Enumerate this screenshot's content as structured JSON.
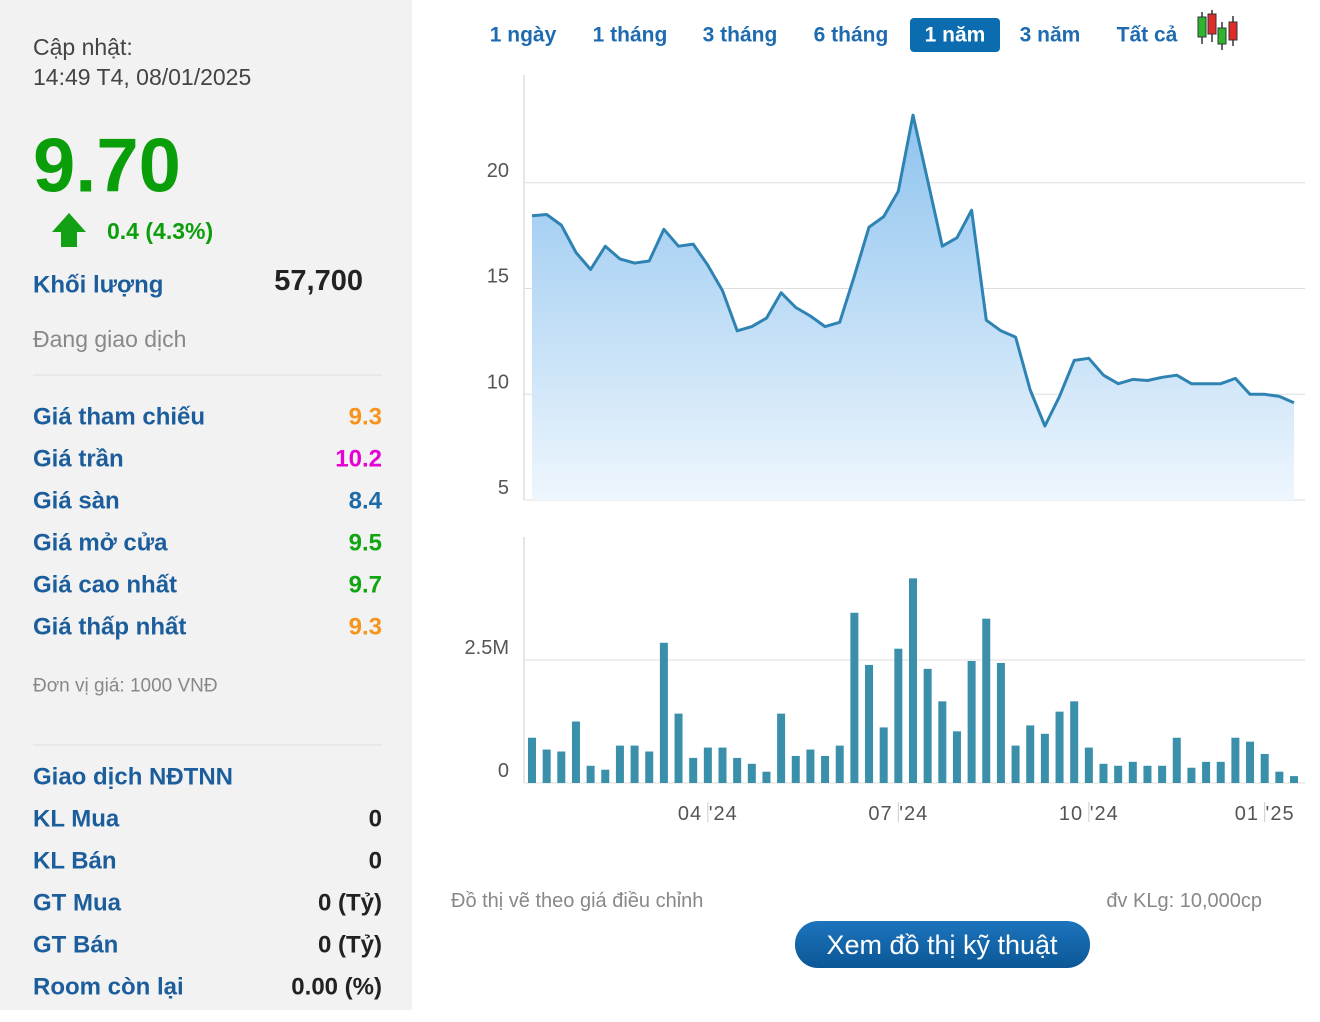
{
  "update": {
    "label": "Cập nhật:",
    "time": "14:49 T4, 08/01/2025"
  },
  "price": "9.70",
  "change": "0.4 (4.3%)",
  "volume": {
    "label": "Khối lượng",
    "value": "57,700"
  },
  "status": "Đang giao dịch",
  "price_table": [
    {
      "label": "Giá tham chiếu",
      "value": "9.3",
      "color": "#f7941d"
    },
    {
      "label": "Giá trần",
      "value": "10.2",
      "color": "#e600d6"
    },
    {
      "label": "Giá sàn",
      "value": "8.4",
      "color": "#1c6aa8"
    },
    {
      "label": "Giá mở cửa",
      "value": "9.5",
      "color": "#12a512"
    },
    {
      "label": "Giá cao nhất",
      "value": "9.7",
      "color": "#12a512"
    },
    {
      "label": "Giá thấp nhất",
      "value": "9.3",
      "color": "#f7941d"
    }
  ],
  "unit_note": "Đơn vị giá: 1000 VNĐ",
  "foreign": {
    "title": "Giao dịch NĐTNN",
    "rows": [
      {
        "label": "KL Mua",
        "value": "0"
      },
      {
        "label": "KL Bán",
        "value": "0"
      },
      {
        "label": "GT Mua",
        "value": "0 (Tỷ)"
      },
      {
        "label": "GT Bán",
        "value": "0 (Tỷ)"
      },
      {
        "label": "Room còn lại",
        "value": "0.00 (%)"
      }
    ]
  },
  "tabs": {
    "items": [
      "1 ngày",
      "1 tháng",
      "3 tháng",
      "6 tháng",
      "1 năm",
      "3 năm",
      "Tất cả"
    ],
    "active": 4
  },
  "chart_data": [
    {
      "type": "area",
      "color": "#2f83b3",
      "values": [
        18.44,
        18.5,
        18.0,
        16.7,
        15.9,
        17.0,
        16.4,
        16.2,
        16.3,
        17.8,
        17.0,
        17.1,
        16.1,
        14.9,
        13.0,
        13.2,
        13.6,
        14.8,
        14.1,
        13.7,
        13.2,
        13.4,
        15.6,
        17.9,
        18.4,
        19.6,
        23.2,
        20.1,
        17.0,
        17.4,
        18.7,
        13.5,
        13.0,
        12.7,
        10.2,
        8.5,
        9.9,
        11.6,
        11.7,
        10.9,
        10.5,
        10.7,
        10.65,
        10.8,
        10.9,
        10.5,
        10.5,
        10.5,
        10.75,
        10.0,
        10.0,
        9.9,
        9.6
      ],
      "ylim": [
        5,
        25
      ],
      "yticks": [
        5,
        10,
        15,
        20
      ],
      "grid": true
    },
    {
      "type": "bar",
      "color": "#3a8fab",
      "categories": [
        null,
        null,
        null,
        null,
        null,
        null,
        null,
        null,
        null,
        null,
        null,
        null,
        "04 '24",
        null,
        null,
        null,
        null,
        null,
        null,
        null,
        null,
        null,
        null,
        null,
        null,
        "07 '24",
        null,
        null,
        null,
        null,
        null,
        null,
        null,
        null,
        null,
        null,
        null,
        null,
        "10 '24",
        null,
        null,
        null,
        null,
        null,
        null,
        null,
        null,
        null,
        null,
        null,
        "01 '25",
        null,
        null
      ],
      "values": [
        920000,
        680000,
        640000,
        1250000,
        350000,
        270000,
        760000,
        760000,
        640000,
        2850000,
        1410000,
        510000,
        720000,
        720000,
        510000,
        390000,
        230000,
        1410000,
        550000,
        680000,
        550000,
        760000,
        3460000,
        2400000,
        1130000,
        2730000,
        4160000,
        2320000,
        1660000,
        1050000,
        2480000,
        3340000,
        2440000,
        760000,
        1170000,
        1000000,
        1450000,
        1660000,
        720000,
        390000,
        350000,
        430000,
        350000,
        350000,
        920000,
        310000,
        430000,
        430000,
        920000,
        840000,
        590000,
        230000,
        140000
      ],
      "ylim": [
        0,
        5000000
      ],
      "yticks": [
        0,
        {
          "value": 2500000,
          "label": "2.5M"
        }
      ],
      "grid": true
    }
  ],
  "footnotes": {
    "left": "Đồ thị vẽ theo giá điều chỉnh",
    "right": "đv KLg: 10,000cp"
  },
  "button": "Xem đồ thị kỹ thuật"
}
